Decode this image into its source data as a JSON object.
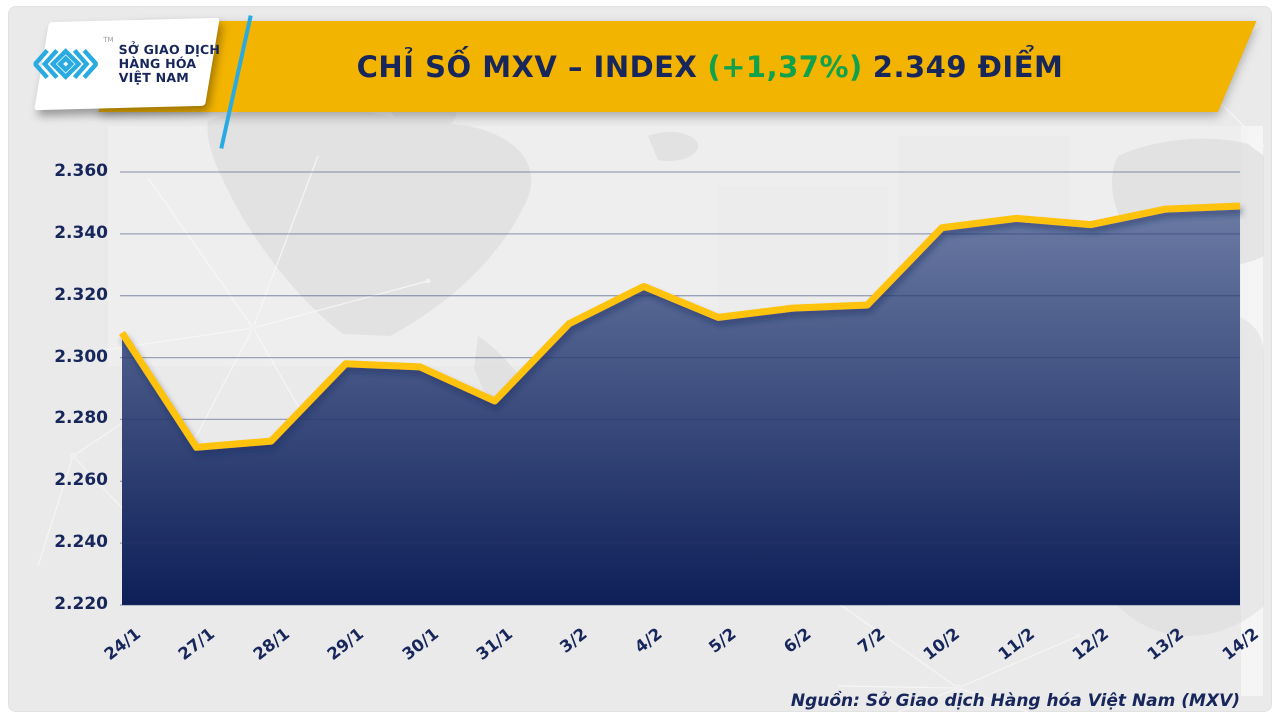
{
  "header": {
    "logo": {
      "mark_icon": "mxv-chevron-diamond-mark",
      "trademark": "TM",
      "org_lines": [
        "SỞ GIAO DỊCH",
        "HÀNG HÓA",
        "VIỆT NAM"
      ]
    },
    "title_prefix": "CHỈ SỐ MXV – INDEX",
    "title_change": "(+1,37%)",
    "title_value": "2.349 ĐIỂM"
  },
  "footer": {
    "source": "Nguồn: Sở Giao dịch Hàng hóa Việt Nam (MXV)"
  },
  "colors": {
    "banner_yellow": "#F3B400",
    "line_yellow": "#FFC30B",
    "navy_text": "#17265B",
    "green_change": "#0FA14B",
    "logo_cyan": "#29ABE2",
    "area_top": "#6B7BA4",
    "area_bottom": "#0E1F58",
    "gridline": "rgba(40,58,110,0.42)"
  },
  "chart_data": {
    "type": "area",
    "title": "CHỈ SỐ MXV – INDEX (+1,37%) 2.349 ĐIỂM",
    "xlabel": "",
    "ylabel": "",
    "categories": [
      "24/1",
      "27/1",
      "28/1",
      "29/1",
      "30/1",
      "31/1",
      "3/2",
      "4/2",
      "5/2",
      "6/2",
      "7/2",
      "10/2",
      "11/2",
      "12/2",
      "13/2",
      "14/2"
    ],
    "values": [
      2308,
      2271,
      2273,
      2298,
      2297,
      2286,
      2311,
      2323,
      2313,
      2316,
      2317,
      2342,
      2345,
      2343,
      2348,
      2349
    ],
    "ylim": [
      2220,
      2360
    ],
    "ytick_values": [
      2360,
      2340,
      2320,
      2300,
      2280,
      2260,
      2240,
      2220
    ],
    "ytick_labels": [
      "2.360",
      "2.340",
      "2.320",
      "2.300",
      "2.280",
      "2.260",
      "2.240",
      "2.220"
    ],
    "grid": true,
    "legend": false,
    "source": "Nguồn: Sở Giao dịch Hàng hóa Việt Nam (MXV)"
  }
}
